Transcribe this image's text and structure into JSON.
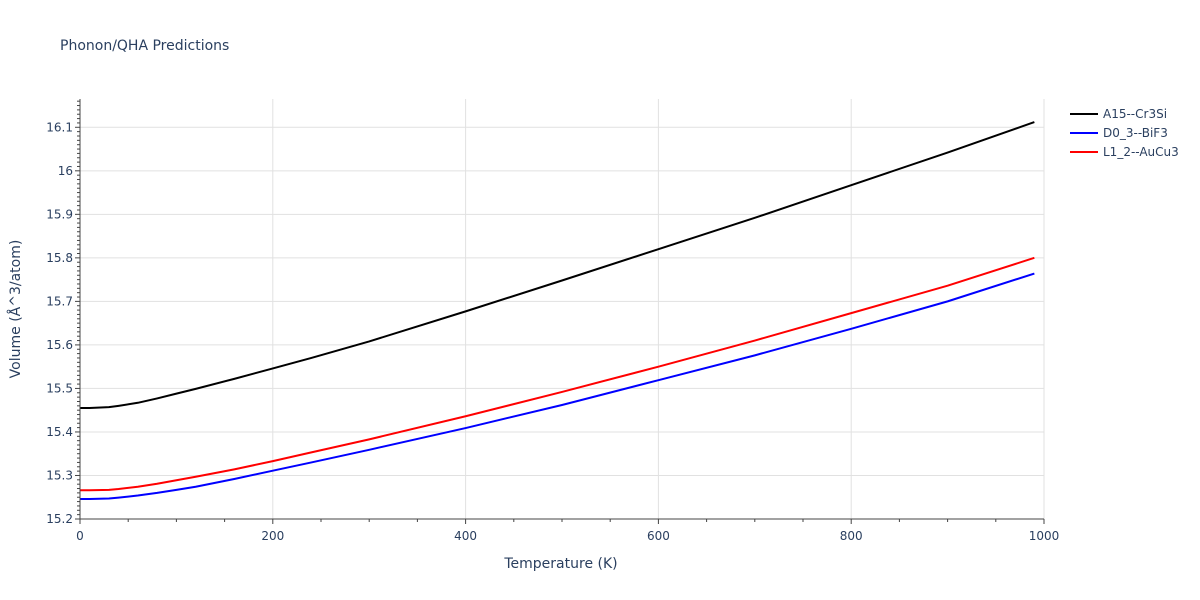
{
  "chart_data": {
    "type": "line",
    "title": "Phonon/QHA Predictions",
    "xlabel": "Temperature (K)",
    "ylabel": "Volume (Å^3/atom)",
    "xlim": [
      0,
      1000
    ],
    "ylim": [
      15.2,
      16.165
    ],
    "xticks": [
      0,
      200,
      400,
      600,
      800,
      1000
    ],
    "xtick_labels": [
      "0",
      "200",
      "400",
      "600",
      "800",
      "1000"
    ],
    "yticks": [
      15.2,
      15.3,
      15.4,
      15.5,
      15.6,
      15.7,
      15.8,
      15.9,
      16.0,
      16.1
    ],
    "ytick_labels": [
      "15.2",
      "15.3",
      "15.4",
      "15.5",
      "15.6",
      "15.7",
      "15.8",
      "15.9",
      "16",
      "16.1"
    ],
    "grid": true,
    "legend_position": "top-right outside",
    "series": [
      {
        "name": "A15--Cr3Si",
        "color": "#000000",
        "x": [
          0,
          10,
          30,
          40,
          60,
          80,
          100,
          120,
          160,
          200,
          240,
          300,
          400,
          500,
          600,
          700,
          800,
          900,
          990
        ],
        "y": [
          15.455,
          15.455,
          15.457,
          15.46,
          15.467,
          15.477,
          15.488,
          15.499,
          15.522,
          15.546,
          15.57,
          15.608,
          15.677,
          15.748,
          15.82,
          15.892,
          15.967,
          16.042,
          16.112
        ]
      },
      {
        "name": "D0_3--BiF3",
        "color": "#0000ff",
        "x": [
          0,
          10,
          30,
          40,
          60,
          80,
          100,
          120,
          160,
          200,
          240,
          300,
          400,
          500,
          600,
          700,
          800,
          900,
          990
        ],
        "y": [
          15.246,
          15.246,
          15.247,
          15.249,
          15.254,
          15.26,
          15.267,
          15.274,
          15.292,
          15.311,
          15.33,
          15.359,
          15.409,
          15.462,
          15.519,
          15.576,
          15.637,
          15.7,
          15.764
        ]
      },
      {
        "name": "L1_2--AuCu3",
        "color": "#ff0000",
        "x": [
          0,
          10,
          30,
          40,
          60,
          80,
          100,
          120,
          160,
          200,
          240,
          300,
          400,
          500,
          600,
          700,
          800,
          900,
          990
        ],
        "y": [
          15.266,
          15.266,
          15.267,
          15.269,
          15.274,
          15.281,
          15.289,
          15.297,
          15.314,
          15.333,
          15.353,
          15.383,
          15.436,
          15.492,
          15.55,
          15.61,
          15.673,
          15.736,
          15.8
        ]
      }
    ]
  }
}
